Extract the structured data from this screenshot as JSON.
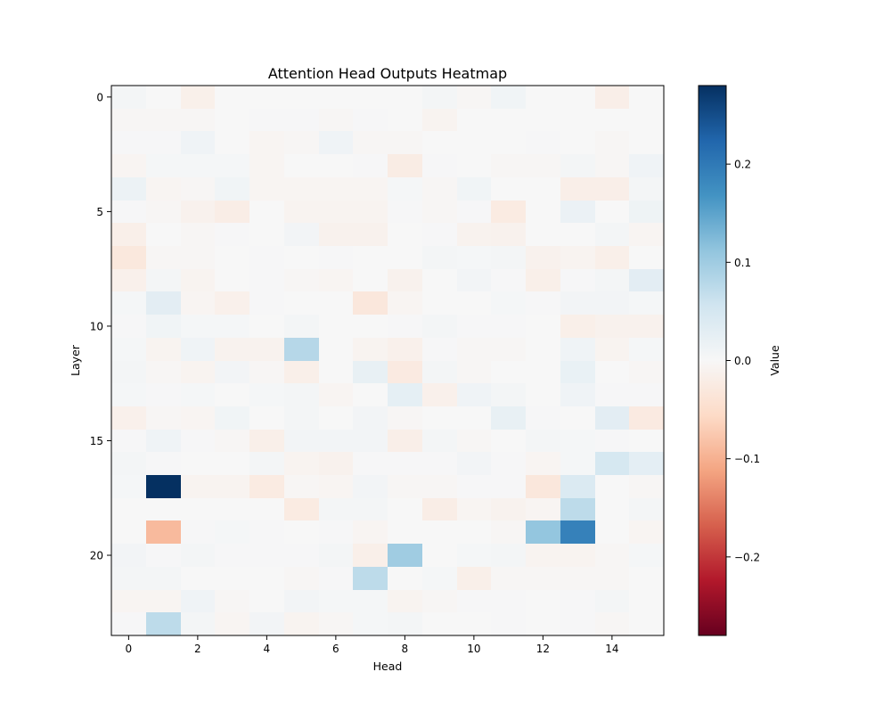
{
  "chart_data": {
    "type": "heatmap",
    "title": "Attention Head Outputs Heatmap",
    "xlabel": "Head",
    "ylabel": "Layer",
    "colorbar_label": "Value",
    "colormap": "RdBu",
    "vmin": -0.28,
    "vmax": 0.28,
    "x_ticks": [
      0,
      2,
      4,
      6,
      8,
      10,
      12,
      14
    ],
    "y_ticks": [
      0,
      5,
      10,
      15,
      20
    ],
    "colorbar_ticks": [
      -0.2,
      -0.1,
      0.0,
      0.1,
      0.2
    ],
    "x_tick_labels": [
      "0",
      "2",
      "4",
      "6",
      "8",
      "10",
      "12",
      "14"
    ],
    "y_tick_labels": [
      "0",
      "5",
      "10",
      "15",
      "20"
    ],
    "colorbar_tick_labels": [
      "−0.2",
      "−0.1",
      "0.0",
      "0.1",
      "0.2"
    ],
    "n_heads": 16,
    "n_layers": 24,
    "values": [
      [
        0.006,
        0.0,
        -0.015,
        0.0,
        0.0,
        0.0,
        0.0,
        0.0,
        0.0,
        0.006,
        -0.004,
        0.01,
        0.0,
        0.0,
        -0.018,
        0.0
      ],
      [
        -0.004,
        -0.004,
        -0.004,
        0.0,
        0.002,
        0.002,
        -0.004,
        0.002,
        0.0,
        -0.008,
        0.0,
        0.0,
        0.0,
        0.0,
        0.0,
        0.0
      ],
      [
        0.002,
        0.002,
        0.012,
        0.0,
        -0.006,
        -0.004,
        0.012,
        -0.004,
        -0.004,
        0.0,
        0.0,
        0.0,
        0.002,
        0.0,
        -0.004,
        0.0
      ],
      [
        -0.006,
        0.004,
        0.004,
        0.004,
        -0.006,
        0.0,
        0.0,
        0.002,
        -0.022,
        0.002,
        0.0,
        -0.004,
        -0.004,
        0.006,
        -0.004,
        0.012
      ],
      [
        0.016,
        -0.006,
        -0.004,
        0.01,
        -0.006,
        -0.006,
        -0.006,
        -0.006,
        0.004,
        -0.004,
        0.01,
        0.0,
        0.0,
        -0.018,
        -0.018,
        0.006
      ],
      [
        0.002,
        -0.004,
        -0.012,
        -0.02,
        0.0,
        -0.008,
        -0.008,
        -0.008,
        0.002,
        -0.004,
        0.002,
        -0.024,
        0.0,
        0.018,
        0.0,
        0.014
      ],
      [
        -0.016,
        0.0,
        -0.004,
        0.002,
        0.0,
        0.008,
        -0.012,
        -0.012,
        0.0,
        0.002,
        -0.01,
        -0.012,
        0.0,
        0.0,
        0.006,
        -0.006
      ],
      [
        -0.03,
        -0.004,
        -0.004,
        0.0,
        0.002,
        0.0,
        0.002,
        0.0,
        0.0,
        0.006,
        0.004,
        0.006,
        -0.012,
        -0.008,
        -0.016,
        0.0
      ],
      [
        -0.014,
        0.006,
        -0.008,
        0.0,
        0.002,
        -0.004,
        -0.006,
        0.0,
        -0.012,
        0.0,
        0.008,
        0.002,
        -0.016,
        0.002,
        0.006,
        0.03
      ],
      [
        0.004,
        0.03,
        -0.006,
        -0.014,
        0.002,
        0.0,
        0.0,
        -0.032,
        -0.006,
        0.0,
        0.0,
        0.004,
        0.002,
        0.008,
        0.008,
        0.004
      ],
      [
        0.002,
        0.01,
        0.004,
        0.004,
        0.0,
        0.006,
        0.0,
        0.0,
        0.002,
        0.006,
        0.002,
        0.002,
        0.0,
        -0.016,
        -0.012,
        -0.012
      ],
      [
        0.004,
        -0.008,
        0.012,
        -0.01,
        -0.01,
        0.08,
        0.0,
        -0.008,
        -0.014,
        0.002,
        -0.004,
        -0.004,
        0.0,
        0.012,
        -0.008,
        0.004
      ],
      [
        0.006,
        -0.004,
        -0.008,
        0.008,
        -0.004,
        -0.016,
        0.0,
        0.022,
        -0.026,
        0.006,
        -0.004,
        0.0,
        0.0,
        0.02,
        0.0,
        -0.004
      ],
      [
        0.004,
        0.002,
        0.004,
        0.0,
        0.004,
        0.006,
        -0.006,
        0.0,
        0.026,
        -0.014,
        0.012,
        0.006,
        0.0,
        0.012,
        0.002,
        0.002
      ],
      [
        -0.014,
        -0.004,
        -0.006,
        0.01,
        0.0,
        0.006,
        0.0,
        0.008,
        -0.004,
        0.0,
        0.0,
        0.022,
        0.002,
        0.0,
        0.03,
        -0.026
      ],
      [
        0.002,
        0.012,
        0.002,
        -0.004,
        -0.016,
        0.008,
        0.008,
        0.008,
        -0.018,
        0.006,
        -0.004,
        0.0,
        0.006,
        0.004,
        0.002,
        0.0
      ],
      [
        0.006,
        0.002,
        0.0,
        0.0,
        0.006,
        -0.008,
        -0.012,
        0.002,
        0.002,
        0.002,
        0.008,
        0.002,
        -0.006,
        0.004,
        0.048,
        0.028
      ],
      [
        0.004,
        0.28,
        -0.008,
        -0.008,
        -0.024,
        -0.004,
        -0.006,
        0.008,
        -0.004,
        -0.004,
        0.002,
        0.002,
        -0.032,
        0.042,
        0.0,
        -0.004
      ],
      [
        0.0,
        0.0,
        0.0,
        0.0,
        0.0,
        -0.024,
        0.006,
        0.006,
        0.0,
        -0.02,
        -0.006,
        -0.01,
        -0.006,
        0.074,
        0.0,
        0.006
      ],
      [
        0.0,
        -0.09,
        0.002,
        0.004,
        0.002,
        0.0,
        0.002,
        -0.006,
        0.0,
        0.0,
        0.0,
        -0.004,
        0.11,
        0.19,
        0.0,
        -0.006
      ],
      [
        0.008,
        0.002,
        0.006,
        0.002,
        0.002,
        0.002,
        0.006,
        -0.016,
        0.1,
        0.0,
        0.004,
        0.006,
        -0.008,
        -0.008,
        -0.004,
        0.004
      ],
      [
        0.006,
        0.006,
        0.0,
        0.0,
        0.0,
        -0.004,
        0.002,
        0.074,
        0.0,
        0.004,
        -0.016,
        -0.004,
        -0.004,
        -0.004,
        -0.004,
        0.0
      ],
      [
        -0.006,
        -0.006,
        0.012,
        -0.004,
        0.0,
        0.008,
        0.004,
        0.004,
        -0.008,
        -0.004,
        0.002,
        0.002,
        0.0,
        0.002,
        0.006,
        0.0
      ],
      [
        0.002,
        0.074,
        0.006,
        -0.006,
        0.008,
        -0.008,
        -0.004,
        0.004,
        0.006,
        0.0,
        0.0,
        0.002,
        0.0,
        0.002,
        -0.004,
        0.0
      ]
    ]
  }
}
